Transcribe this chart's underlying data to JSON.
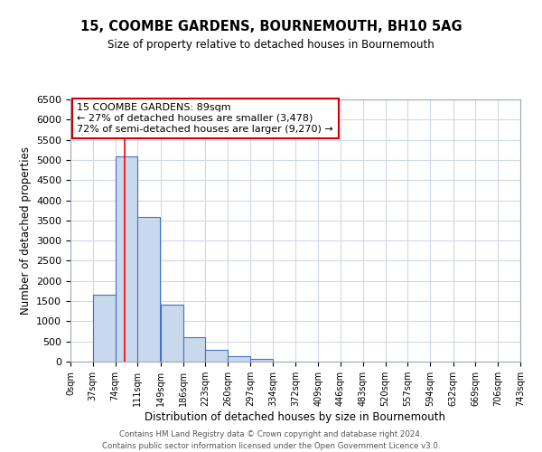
{
  "title": "15, COOMBE GARDENS, BOURNEMOUTH, BH10 5AG",
  "subtitle": "Size of property relative to detached houses in Bournemouth",
  "xlabel": "Distribution of detached houses by size in Bournemouth",
  "ylabel": "Number of detached properties",
  "bin_labels": [
    "0sqm",
    "37sqm",
    "74sqm",
    "111sqm",
    "149sqm",
    "186sqm",
    "223sqm",
    "260sqm",
    "297sqm",
    "334sqm",
    "372sqm",
    "409sqm",
    "446sqm",
    "483sqm",
    "520sqm",
    "557sqm",
    "594sqm",
    "632sqm",
    "669sqm",
    "706sqm",
    "743sqm"
  ],
  "bin_edges": [
    0,
    37,
    74,
    111,
    149,
    186,
    223,
    260,
    297,
    334,
    372,
    409,
    446,
    483,
    520,
    557,
    594,
    632,
    669,
    706,
    743
  ],
  "bar_heights": [
    0,
    1650,
    5080,
    3580,
    1420,
    610,
    290,
    140,
    70,
    0,
    0,
    0,
    0,
    0,
    0,
    0,
    0,
    0,
    0,
    0
  ],
  "bar_color": "#c9d9ed",
  "bar_edge_color": "#4472c4",
  "grid_color": "#d0d8e8",
  "red_line_x": 89,
  "annotation_title": "15 COOMBE GARDENS: 89sqm",
  "annotation_line1": "← 27% of detached houses are smaller (3,478)",
  "annotation_line2": "72% of semi-detached houses are larger (9,270) →",
  "annotation_box_color": "#ffffff",
  "annotation_box_edge": "#cc0000",
  "ylim": [
    0,
    6500
  ],
  "yticks": [
    0,
    500,
    1000,
    1500,
    2000,
    2500,
    3000,
    3500,
    4000,
    4500,
    5000,
    5500,
    6000,
    6500
  ],
  "footer1": "Contains HM Land Registry data © Crown copyright and database right 2024.",
  "footer2": "Contains public sector information licensed under the Open Government Licence v3.0."
}
